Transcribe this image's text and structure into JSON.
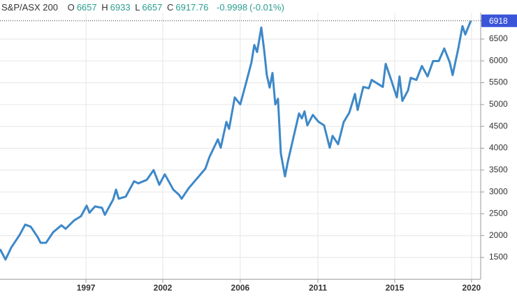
{
  "chart_data": {
    "type": "line",
    "header": {
      "name": "S&P/ASX 200",
      "open": {
        "label": "O",
        "value": 6657
      },
      "high": {
        "label": "H",
        "value": 6933
      },
      "low": {
        "label": "L",
        "value": 6657
      },
      "close": {
        "label": "C",
        "value": 6917.76
      },
      "change": -0.9998,
      "change_pct": "(-0.01%)"
    },
    "x": [
      1991.85,
      1992.18,
      1992.52,
      1993.02,
      1993.36,
      1993.69,
      1994.11,
      1994.28,
      1994.61,
      1995.03,
      1995.53,
      1995.78,
      1996.29,
      1996.7,
      1997.04,
      1997.21,
      1997.54,
      1997.96,
      1998.13,
      1998.63,
      1998.8,
      1998.96,
      1999.38,
      1999.88,
      2000.13,
      2000.64,
      2001.05,
      2001.39,
      2001.72,
      2002.23,
      2002.56,
      2002.73,
      2003.15,
      2003.65,
      2004.15,
      2004.4,
      2004.9,
      2005.07,
      2005.41,
      2005.57,
      2005.91,
      2006.24,
      2006.58,
      2006.91,
      2007.08,
      2007.25,
      2007.5,
      2007.67,
      2007.83,
      2008.0,
      2008.17,
      2008.34,
      2008.5,
      2008.67,
      2008.92,
      2009.09,
      2009.42,
      2009.76,
      2009.93,
      2010.09,
      2010.26,
      2010.59,
      2010.93,
      2011.26,
      2011.6,
      2011.77,
      2012.1,
      2012.44,
      2012.77,
      2013.11,
      2013.27,
      2013.61,
      2013.94,
      2014.11,
      2014.44,
      2014.78,
      2014.95,
      2015.28,
      2015.62,
      2015.78,
      2015.95,
      2016.29,
      2016.45,
      2016.79,
      2017.12,
      2017.46,
      2017.79,
      2018.13,
      2018.46,
      2018.79,
      2018.96,
      2019.3,
      2019.55,
      2019.72,
      2020.05
    ],
    "series": [
      {
        "name": "S&P/ASX 200",
        "color": "#3d88c8",
        "values": [
          1692,
          1452,
          1724,
          2012,
          2252,
          2204,
          1964,
          1836,
          1836,
          2076,
          2236,
          2156,
          2348,
          2444,
          2684,
          2524,
          2668,
          2636,
          2476,
          2828,
          3052,
          2844,
          2892,
          3244,
          3196,
          3276,
          3500,
          3164,
          3404,
          3052,
          2940,
          2844,
          3084,
          3308,
          3532,
          3804,
          4204,
          4012,
          4604,
          4444,
          5164,
          5004,
          5484,
          5964,
          6364,
          6204,
          6764,
          6252,
          5676,
          5388,
          5724,
          5004,
          5132,
          3884,
          3356,
          3692,
          4236,
          4796,
          4684,
          4844,
          4524,
          4764,
          4604,
          4524,
          4012,
          4284,
          4092,
          4604,
          4812,
          5244,
          4876,
          5404,
          5372,
          5564,
          5484,
          5404,
          5932,
          5564,
          5164,
          5644,
          5084,
          5324,
          5612,
          5564,
          5884,
          5644,
          5996,
          5996,
          6284,
          5964,
          5676,
          6284,
          6796,
          6604,
          6917.76
        ]
      }
    ],
    "last_price": 6918,
    "last_price_color": "#3b55d9",
    "xlim": [
      1991.85,
      2020.64
    ],
    "xticks": [
      {
        "value": 1997,
        "label": "1997"
      },
      {
        "value": 2001.6,
        "label": "2002"
      },
      {
        "value": 2006.24,
        "label": "2006"
      },
      {
        "value": 2010.89,
        "label": "2011"
      },
      {
        "value": 2015.49,
        "label": "2015"
      },
      {
        "value": 2020.09,
        "label": "2020"
      }
    ],
    "ylim": [
      1000,
      7100
    ],
    "yticks": [
      1500,
      2000,
      2500,
      3000,
      3500,
      4000,
      4500,
      5000,
      5500,
      6000,
      6500
    ],
    "grid": true
  }
}
